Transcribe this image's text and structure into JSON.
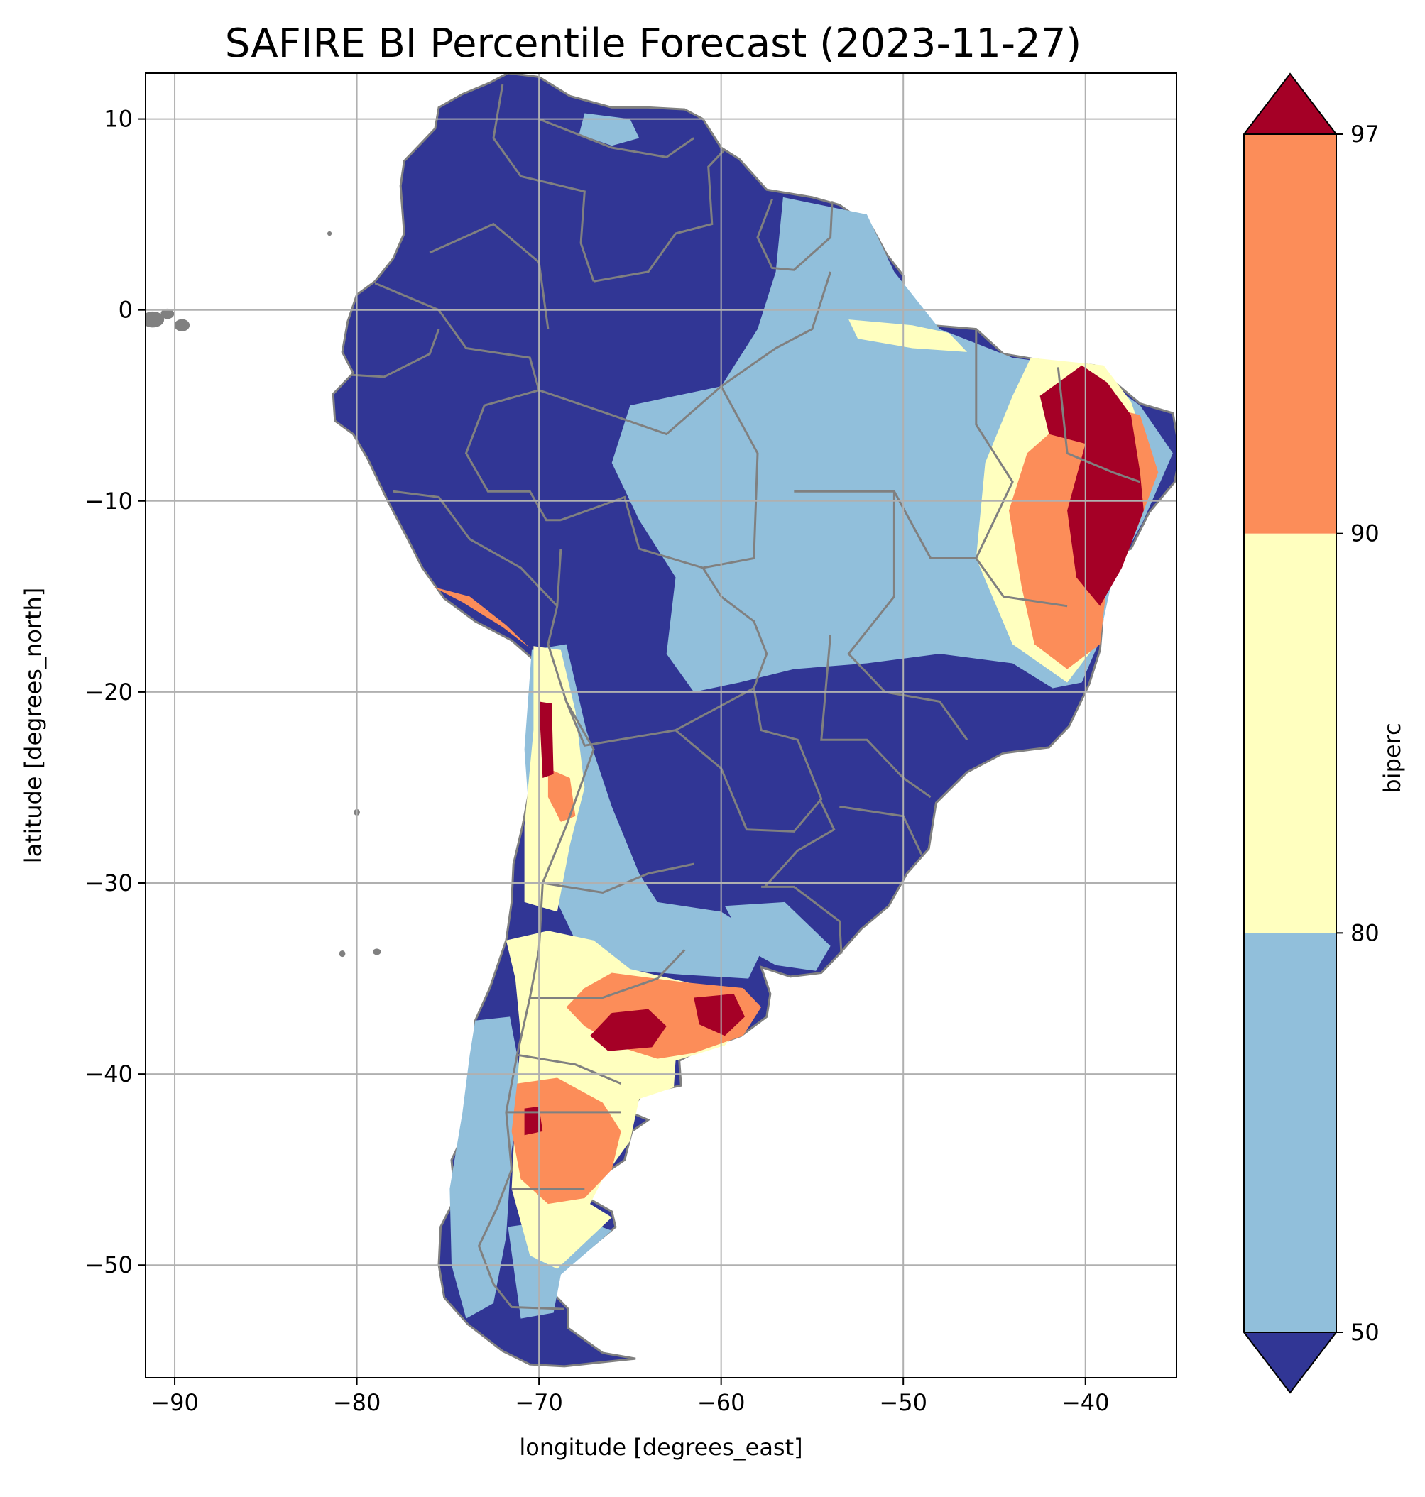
{
  "title": "SAFIRE BI Percentile Forecast (2023-11-27)",
  "map": {
    "xlabel": "longitude [degrees_east]",
    "ylabel": "latitude [degrees_north]",
    "xlim": [
      -91.6,
      -35.0
    ],
    "ylim": [
      -55.9,
      12.4
    ],
    "x_ticks": [
      "−90",
      "−80",
      "−70",
      "−60",
      "−50",
      "−40"
    ],
    "x_tick_values": [
      -90,
      -80,
      -70,
      -60,
      -50,
      -40
    ],
    "y_ticks": [
      "10",
      "0",
      "−10",
      "−20",
      "−30",
      "−40",
      "−50"
    ],
    "y_tick_values": [
      10,
      0,
      -10,
      -20,
      -30,
      -40,
      -50
    ],
    "grid": true
  },
  "colorbar": {
    "label": "biperc",
    "ticks": [
      "50",
      "80",
      "90",
      "97"
    ],
    "levels": [
      50,
      80,
      90,
      97
    ],
    "colors": {
      "below_50": "#313695",
      "50_80": "#91bfdb",
      "80_90": "#ffffbf",
      "90_97": "#fc8d59",
      "above_97": "#a50026"
    },
    "extend": "both"
  },
  "colors": {
    "ocean": "#ffffff",
    "land_background": "#313695",
    "borders": "#808080",
    "grid": "#b0b0b0"
  }
}
